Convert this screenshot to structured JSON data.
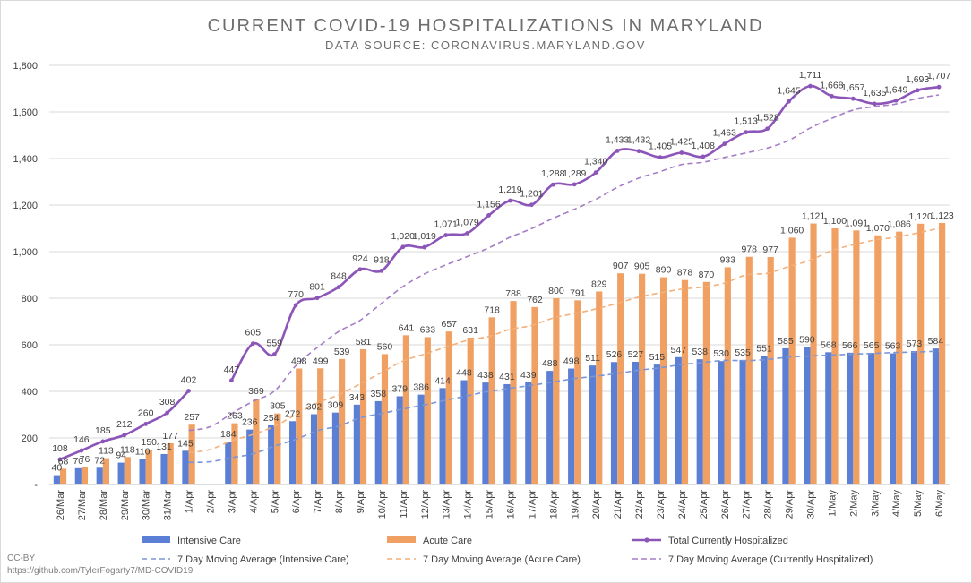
{
  "chart_data": {
    "type": "bar",
    "title": "CURRENT COVID-19 HOSPITALIZATIONS IN MARYLAND",
    "subtitle": "DATA SOURCE: CORONAVIRUS.MARYLAND.GOV",
    "xlabel": "",
    "ylabel": "",
    "ylim": [
      0,
      1800
    ],
    "yticks": [
      0,
      200,
      400,
      600,
      800,
      1000,
      1200,
      1400,
      1600,
      1800
    ],
    "ytick_labels": [
      "-",
      "200",
      "400",
      "600",
      "800",
      "1,000",
      "1,200",
      "1,400",
      "1,600",
      "1,800"
    ],
    "grid": true,
    "legend_position": "bottom",
    "categories": [
      "26/Mar",
      "27/Mar",
      "28/Mar",
      "29/Mar",
      "30/Mar",
      "31/Mar",
      "1/Apr",
      "2/Apr",
      "3/Apr",
      "4/Apr",
      "5/Apr",
      "6/Apr",
      "7/Apr",
      "8/Apr",
      "9/Apr",
      "10/Apr",
      "11/Apr",
      "12/Apr",
      "13/Apr",
      "14/Apr",
      "15/Apr",
      "16/Apr",
      "17/Apr",
      "18/Apr",
      "19/Apr",
      "20/Apr",
      "21/Apr",
      "22/Apr",
      "23/Apr",
      "24/Apr",
      "25/Apr",
      "26/Apr",
      "27/Apr",
      "28/Apr",
      "29/Apr",
      "30/Apr",
      "1/May",
      "2/May",
      "3/May",
      "4/May",
      "5/May",
      "6/May"
    ],
    "series": [
      {
        "name": "Intensive Care",
        "kind": "bar",
        "color": "#5b7fd4",
        "values": [
          40,
          70,
          72,
          94,
          110,
          131,
          145,
          null,
          184,
          236,
          254,
          272,
          302,
          309,
          343,
          358,
          379,
          386,
          414,
          448,
          438,
          431,
          439,
          488,
          498,
          511,
          526,
          527,
          515,
          547,
          538,
          530,
          535,
          551,
          585,
          590,
          568,
          566,
          565,
          563,
          573,
          584
        ]
      },
      {
        "name": "Acute Care",
        "kind": "bar",
        "color": "#f0a062",
        "values": [
          68,
          76,
          113,
          118,
          150,
          177,
          257,
          null,
          263,
          369,
          305,
          498,
          499,
          539,
          581,
          560,
          641,
          633,
          657,
          631,
          718,
          788,
          762,
          800,
          791,
          829,
          907,
          905,
          890,
          878,
          870,
          933,
          978,
          977,
          1060,
          1121,
          1100,
          1091,
          1070,
          1086,
          1120,
          1123
        ]
      },
      {
        "name": "Total Currently Hospitalized",
        "kind": "line",
        "color": "#8c55b8",
        "values": [
          108,
          146,
          185,
          212,
          260,
          308,
          402,
          null,
          447,
          605,
          559,
          770,
          801,
          848,
          924,
          918,
          1020,
          1019,
          1071,
          1079,
          1156,
          1219,
          1201,
          1288,
          1289,
          1340,
          1433,
          1432,
          1405,
          1425,
          1408,
          1463,
          1513,
          1528,
          1645,
          1711,
          1668,
          1657,
          1635,
          1649,
          1693,
          1707
        ]
      },
      {
        "name": "7 Day Moving Average (Intensive Care)",
        "kind": "dashed",
        "color": "#7b96d6",
        "values": [
          null,
          null,
          null,
          null,
          null,
          null,
          95,
          98,
          115,
          132,
          165,
          194,
          231,
          251,
          286,
          305,
          324,
          342,
          362,
          381,
          400,
          413,
          426,
          440,
          455,
          465,
          477,
          491,
          501,
          515,
          524,
          533,
          532,
          537,
          547,
          552,
          556,
          560,
          563,
          567,
          569,
          573
        ]
      },
      {
        "name": "7 Day Moving Average (Acute Care)",
        "kind": "dashed",
        "color": "#f3b07a",
        "values": [
          null,
          null,
          null,
          null,
          null,
          null,
          137,
          150,
          188,
          215,
          250,
          300,
          350,
          385,
          432,
          481,
          530,
          560,
          590,
          619,
          636,
          666,
          683,
          715,
          734,
          754,
          778,
          805,
          823,
          839,
          848,
          865,
          900,
          907,
          936,
          963,
          1005,
          1029,
          1050,
          1062,
          1080,
          1100
        ]
      },
      {
        "name": "7 Day Moving Average (Currently Hospitalized)",
        "kind": "dashed",
        "color": "#a57cc6",
        "values": [
          null,
          null,
          null,
          null,
          null,
          null,
          232,
          248,
          304,
          357,
          401,
          510,
          588,
          657,
          705,
          778,
          850,
          904,
          943,
          979,
          1016,
          1062,
          1099,
          1143,
          1182,
          1225,
          1276,
          1316,
          1344,
          1374,
          1384,
          1405,
          1424,
          1445,
          1478,
          1531,
          1572,
          1608,
          1623,
          1634,
          1658,
          1673
        ]
      }
    ]
  },
  "legend": [
    {
      "label": "Intensive Care",
      "symbol": "bar",
      "color": "#5b7fd4"
    },
    {
      "label": "Acute Care",
      "symbol": "bar",
      "color": "#f0a062"
    },
    {
      "label": "Total Currently Hospitalized",
      "symbol": "line-marker",
      "color": "#8c55b8"
    },
    {
      "label": "7 Day Moving Average (Intensive Care)",
      "symbol": "dash",
      "color": "#7b96d6"
    },
    {
      "label": "7 Day Moving Average (Acute Care)",
      "symbol": "dash",
      "color": "#f3b07a"
    },
    {
      "label": "7 Day Moving Average (Currently Hospitalized)",
      "symbol": "dash",
      "color": "#a57cc6"
    }
  ],
  "footer": {
    "license": "CC-BY",
    "url": "https://github.com/TylerFogarty7/MD-COVID19"
  }
}
